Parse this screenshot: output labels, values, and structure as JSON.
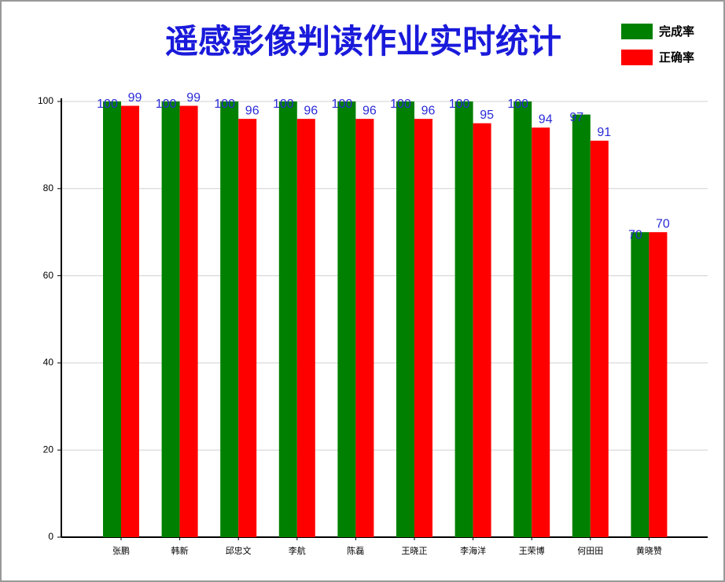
{
  "chart_data": {
    "type": "bar",
    "title": "遥感影像判读作业实时统计",
    "categories": [
      "张鹏",
      "韩新",
      "邱忠文",
      "李航",
      "陈磊",
      "王晓正",
      "李海洋",
      "王荣博",
      "何田田",
      "黄晓赞"
    ],
    "series": [
      {
        "name": "完成率",
        "color": "#008000",
        "values": [
          100,
          100,
          100,
          100,
          100,
          100,
          100,
          100,
          97,
          70
        ]
      },
      {
        "name": "正确率",
        "color": "#ff0000",
        "values": [
          99,
          99,
          96,
          96,
          96,
          96,
          95,
          94,
          91,
          70
        ]
      }
    ],
    "ylim": [
      0,
      100
    ],
    "yticks": [
      0,
      20,
      40,
      60,
      80,
      100
    ],
    "grid": true,
    "legend": "top-right"
  }
}
